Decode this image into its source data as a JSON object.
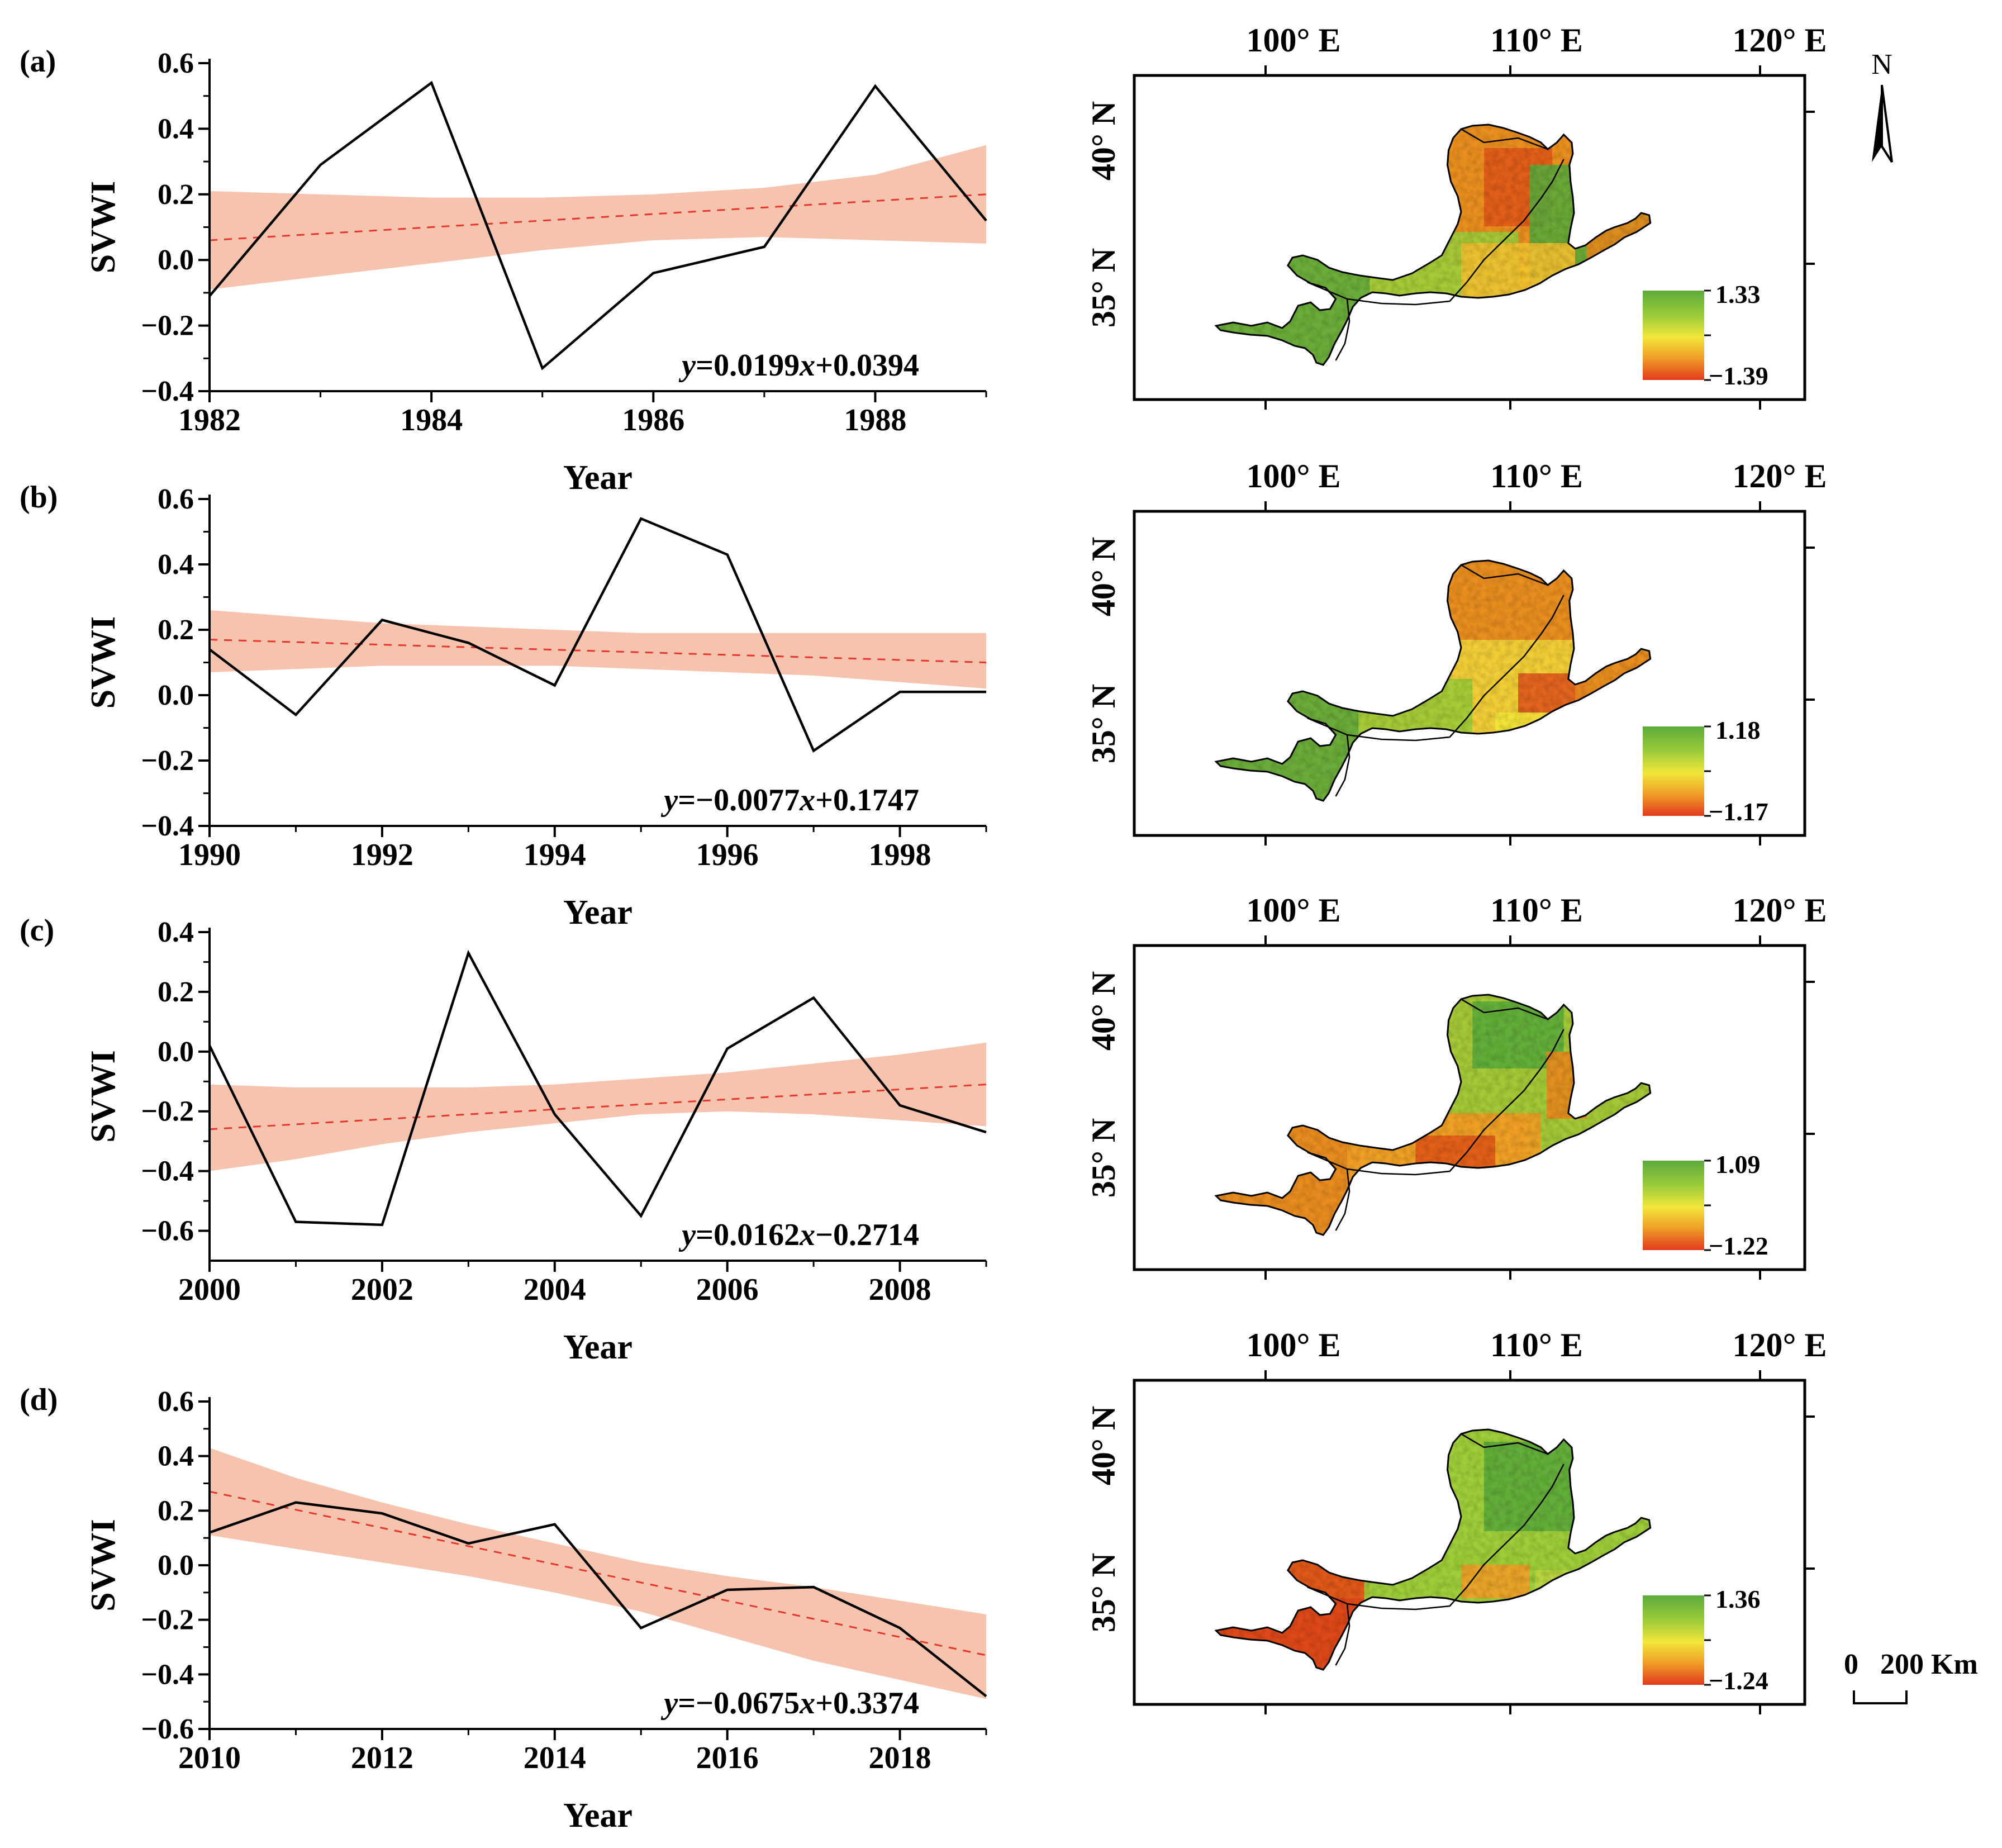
{
  "figure": {
    "colors": {
      "line": "#000000",
      "trend": "#e8362a",
      "band": "#f5b8a0",
      "green": "#5cab3c",
      "yellow": "#f2e63a",
      "orange": "#e88a22",
      "red": "#e23a1c"
    },
    "north_label": "N",
    "scale_label": "0   200 Km"
  },
  "chart_data": [
    {
      "type": "line",
      "panel": "(a)",
      "xlabel": "Year",
      "ylabel": "SVWI",
      "x": [
        1982,
        1983,
        1984,
        1985,
        1986,
        1987,
        1988,
        1989
      ],
      "xticks": [
        1982,
        1984,
        1986,
        1988
      ],
      "xlim": [
        1982,
        1989
      ],
      "ylim": [
        -0.4,
        0.6
      ],
      "yticks": [
        "−0.4",
        "−0.2",
        "0.0",
        "0.2",
        "0.4",
        "0.6"
      ],
      "yticks_val": [
        -0.4,
        -0.2,
        0.0,
        0.2,
        0.4,
        0.6
      ],
      "series": [
        {
          "values": [
            -0.11,
            0.29,
            0.54,
            -0.33,
            -0.04,
            0.04,
            0.53,
            0.12
          ]
        }
      ],
      "trend": {
        "start": 0.06,
        "end": 0.2
      },
      "band": {
        "upper": [
          0.21,
          0.2,
          0.19,
          0.19,
          0.2,
          0.22,
          0.26,
          0.35
        ],
        "lower": [
          -0.09,
          -0.05,
          -0.01,
          0.03,
          0.06,
          0.07,
          0.06,
          0.05
        ]
      },
      "equation": {
        "y": "y",
        "mid": "=0.0199",
        "x": "x",
        "tail": "+0.0394"
      }
    },
    {
      "type": "line",
      "panel": "(b)",
      "xlabel": "Year",
      "ylabel": "SVWI",
      "x": [
        1990,
        1991,
        1992,
        1993,
        1994,
        1995,
        1996,
        1997,
        1998,
        1999
      ],
      "xticks": [
        1990,
        1992,
        1994,
        1996,
        1998
      ],
      "xlim": [
        1990,
        1999
      ],
      "ylim": [
        -0.4,
        0.6
      ],
      "yticks": [
        "−0.4",
        "−0.2",
        "0.0",
        "0.2",
        "0.4",
        "0.6"
      ],
      "yticks_val": [
        -0.4,
        -0.2,
        0.0,
        0.2,
        0.4,
        0.6
      ],
      "series": [
        {
          "values": [
            0.14,
            -0.06,
            0.23,
            0.16,
            0.03,
            0.54,
            0.43,
            -0.17,
            0.01,
            0.01
          ]
        }
      ],
      "trend": {
        "start": 0.17,
        "end": 0.1
      },
      "band": {
        "upper": [
          0.26,
          0.24,
          0.22,
          0.21,
          0.2,
          0.19,
          0.19,
          0.19,
          0.19,
          0.19
        ],
        "lower": [
          0.07,
          0.08,
          0.09,
          0.09,
          0.09,
          0.08,
          0.07,
          0.06,
          0.04,
          0.02
        ]
      },
      "equation": {
        "y": "y",
        "mid": "=−0.0077",
        "x": "x",
        "tail": "+0.1747"
      }
    },
    {
      "type": "line",
      "panel": "(c)",
      "xlabel": "Year",
      "ylabel": "SVWI",
      "x": [
        2000,
        2001,
        2002,
        2003,
        2004,
        2005,
        2006,
        2007,
        2008,
        2009
      ],
      "xticks": [
        2000,
        2002,
        2004,
        2006,
        2008
      ],
      "xlim": [
        2000,
        2009
      ],
      "ylim": [
        -0.7,
        0.4
      ],
      "yticks": [
        "−0.6",
        "−0.4",
        "−0.2",
        "0.0",
        "0.2",
        "0.4"
      ],
      "yticks_val": [
        -0.6,
        -0.4,
        -0.2,
        0.0,
        0.2,
        0.4
      ],
      "series": [
        {
          "values": [
            0.02,
            -0.57,
            -0.58,
            0.33,
            -0.21,
            -0.55,
            0.01,
            0.18,
            -0.18,
            -0.27
          ]
        }
      ],
      "trend": {
        "start": -0.26,
        "end": -0.11
      },
      "band": {
        "upper": [
          -0.11,
          -0.12,
          -0.12,
          -0.12,
          -0.11,
          -0.09,
          -0.07,
          -0.04,
          -0.01,
          0.03
        ],
        "lower": [
          -0.4,
          -0.36,
          -0.31,
          -0.27,
          -0.24,
          -0.21,
          -0.2,
          -0.21,
          -0.23,
          -0.25
        ]
      },
      "equation": {
        "y": "y",
        "mid": "=0.0162",
        "x": "x",
        "tail": "−0.2714"
      }
    },
    {
      "type": "line",
      "panel": "(d)",
      "xlabel": "Year",
      "ylabel": "SVWI",
      "x": [
        2010,
        2011,
        2012,
        2013,
        2014,
        2015,
        2016,
        2017,
        2018,
        2019
      ],
      "xticks": [
        2010,
        2012,
        2014,
        2016,
        2018
      ],
      "xlim": [
        2010,
        2019
      ],
      "ylim": [
        -0.6,
        0.6
      ],
      "yticks": [
        "−0.6",
        "−0.4",
        "−0.2",
        "0.0",
        "0.2",
        "0.4",
        "0.6"
      ],
      "yticks_val": [
        -0.6,
        -0.4,
        -0.2,
        0.0,
        0.2,
        0.4,
        0.6
      ],
      "series": [
        {
          "values": [
            0.12,
            0.23,
            0.19,
            0.08,
            0.15,
            -0.23,
            -0.09,
            -0.08,
            -0.23,
            -0.48
          ]
        }
      ],
      "trend": {
        "start": 0.27,
        "end": -0.33
      },
      "band": {
        "upper": [
          0.43,
          0.32,
          0.23,
          0.15,
          0.08,
          0.01,
          -0.04,
          -0.08,
          -0.13,
          -0.18
        ],
        "lower": [
          0.11,
          0.06,
          0.01,
          -0.04,
          -0.1,
          -0.17,
          -0.26,
          -0.35,
          -0.42,
          -0.49
        ]
      },
      "equation": {
        "y": "y",
        "mid": "=−0.0675",
        "x": "x",
        "tail": "+0.3374"
      }
    }
  ],
  "maps": [
    {
      "lon_labels": [
        "100° E",
        "110° E",
        "120° E"
      ],
      "lat_labels": [
        "40° N",
        "35° N"
      ],
      "legend": {
        "max": "1.33",
        "min": "−1.39"
      },
      "scheme": "a"
    },
    {
      "lon_labels": [
        "100° E",
        "110° E",
        "120° E"
      ],
      "lat_labels": [
        "40° N",
        "35° N"
      ],
      "legend": {
        "max": "1.18",
        "min": "−1.17"
      },
      "scheme": "b"
    },
    {
      "lon_labels": [
        "100° E",
        "110° E",
        "120° E"
      ],
      "lat_labels": [
        "40° N",
        "35° N"
      ],
      "legend": {
        "max": "1.09",
        "min": "−1.22"
      },
      "scheme": "c"
    },
    {
      "lon_labels": [
        "100° E",
        "110° E",
        "120° E"
      ],
      "lat_labels": [
        "40° N",
        "35° N"
      ],
      "legend": {
        "max": "1.36",
        "min": "−1.24"
      },
      "scheme": "d"
    }
  ]
}
